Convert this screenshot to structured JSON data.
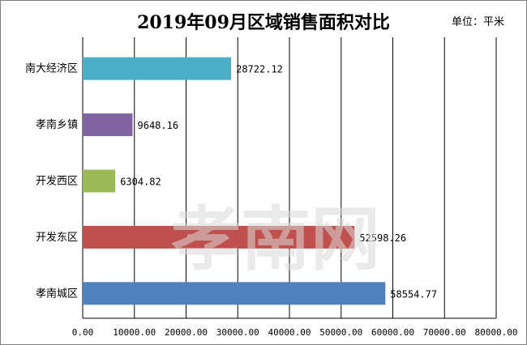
{
  "chart_data": {
    "type": "bar",
    "orientation": "horizontal",
    "title": "2019年09月区域销售面积对比",
    "unit": "单位：平米",
    "categories": [
      "南大经济区",
      "孝南乡镇",
      "开发西区",
      "开发东区",
      "孝南城区"
    ],
    "values": [
      28722.12,
      9648.16,
      6304.82,
      52598.26,
      58554.77
    ],
    "value_labels": [
      "28722.12",
      "9648.16",
      "6304.82",
      "52598.26",
      "58554.77"
    ],
    "colors": [
      "#4bacc6",
      "#8064a2",
      "#9bbb59",
      "#c0504d",
      "#4f81bd"
    ],
    "xlim": [
      0,
      80000
    ],
    "x_ticks": [
      0,
      10000,
      20000,
      30000,
      40000,
      50000,
      60000,
      70000,
      80000
    ],
    "x_tick_labels": [
      "0.00",
      "10000.00",
      "20000.00",
      "30000.00",
      "40000.00",
      "50000.00",
      "60000.00",
      "70000.00",
      "80000.00"
    ],
    "grid": "vertical",
    "legend": "none"
  },
  "watermark": {
    "text": "孝南网"
  }
}
